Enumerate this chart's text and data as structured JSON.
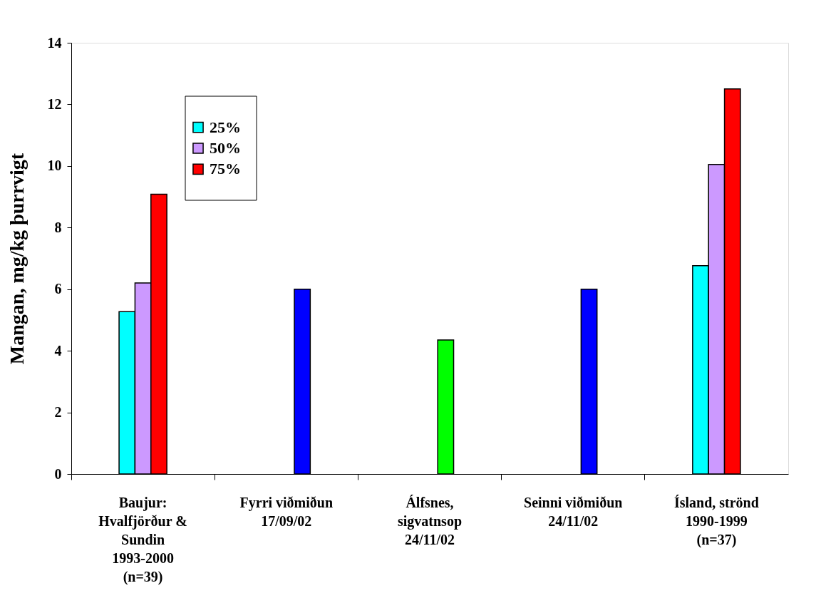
{
  "chart_data": {
    "type": "bar",
    "ylabel": "Mangan, mg/kg þurrvigt",
    "categories": [
      "Baujur: Hvalfjörður & Sundin 1993-2000 (n=39)",
      "Fyrri viðmiðun 17/09/02",
      "Álfsnes, sigvatnsop 24/11/02",
      "Seinni viðmiðun 24/11/02",
      "Ísland, strönd 1990-1999 (n=37)"
    ],
    "series": [
      {
        "name": "25%",
        "color": "#00ffff",
        "values": [
          5.27,
          null,
          null,
          null,
          6.76
        ]
      },
      {
        "name": "50%",
        "color": "#cc99ff",
        "values": [
          6.2,
          null,
          null,
          null,
          10.05
        ]
      },
      {
        "name": "75%",
        "color": "#ff0000",
        "colors": [
          "#ff0000",
          "#0000ff",
          "#00ff00",
          "#0000ff",
          "#ff0000"
        ],
        "values": [
          9.08,
          6.0,
          4.35,
          6.0,
          12.5
        ]
      }
    ],
    "ylim": [
      0,
      14
    ],
    "yticks": [
      0,
      2,
      4,
      6,
      8,
      10,
      12,
      14
    ],
    "grid": false,
    "legend": "top left"
  }
}
